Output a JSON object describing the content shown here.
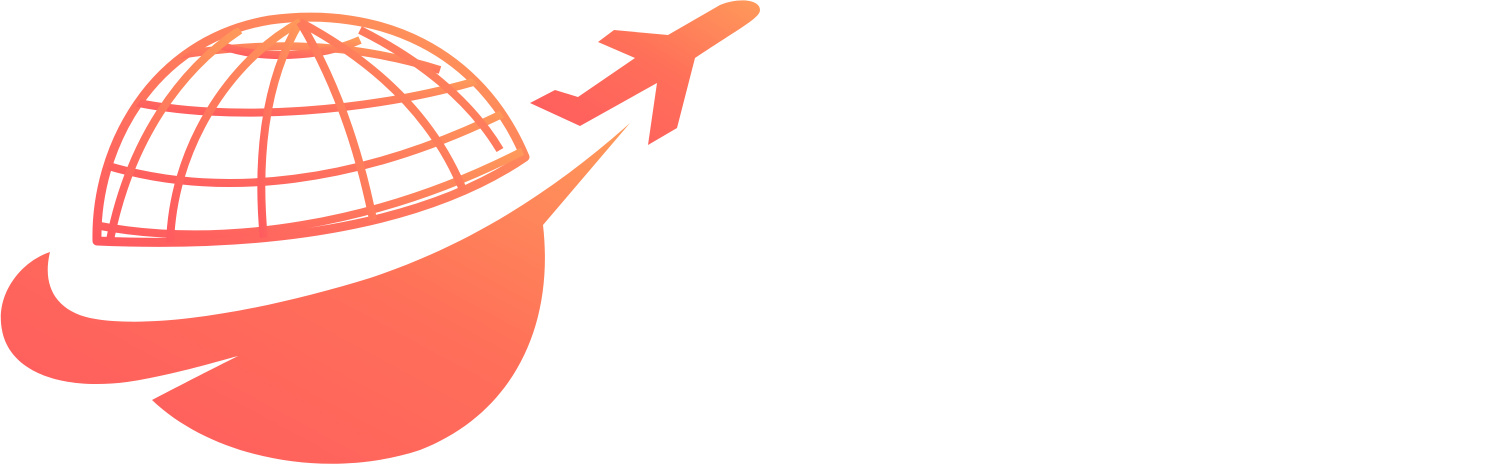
{
  "logo": {
    "name": "travel-globe-airplane-logo",
    "icons": [
      "globe-icon",
      "airplane-icon",
      "swoosh"
    ],
    "colors": {
      "gradient_start": "#ff5a5f",
      "gradient_mid": "#ff6f59",
      "gradient_end": "#ff9a5a",
      "background": "#ffffff"
    }
  }
}
